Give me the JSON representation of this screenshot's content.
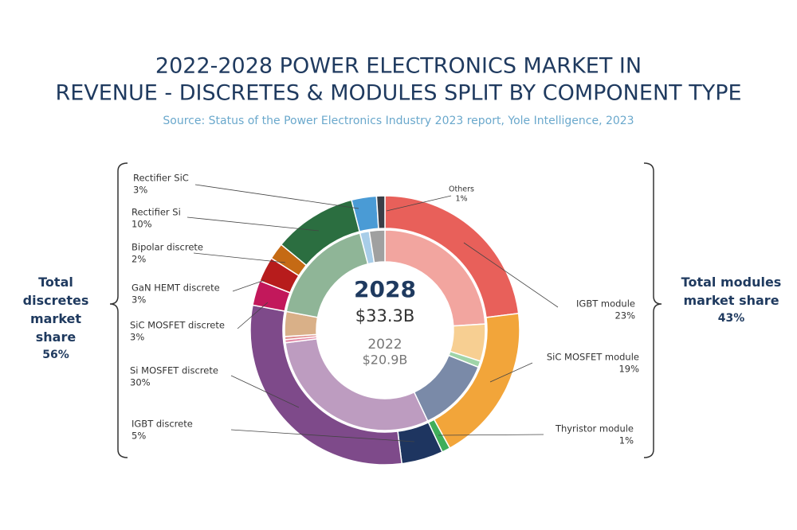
{
  "chart_data": {
    "type": "pie",
    "title": [
      "2022-2028 POWER ELECTRONICS MARKET IN",
      "REVENUE - DISCRETES & MODULES SPLIT BY COMPONENT TYPE"
    ],
    "subtitle": "Source: Status of the Power Electronics Industry 2023 report, Yole Intelligence, 2023",
    "categories": [
      "IGBT module",
      "SiC MOSFET module",
      "Thyristor module",
      "IGBT discrete",
      "Si MOSFET discrete",
      "SiC MOSFET discrete",
      "GaN HEMT discrete",
      "Bipolar discrete",
      "Rectifier Si",
      "Rectifier SiC",
      "Others"
    ],
    "series": [
      {
        "name": "2028",
        "total": "$33.3B",
        "colors": [
          "#e8605a",
          "#f2a53a",
          "#3fae5a",
          "#1e3560",
          "#7e4a8a",
          "#c2185b",
          "#b71c1c",
          "#c56a14",
          "#2b6e40",
          "#4a9bd5",
          "#3a3f47"
        ],
        "values": [
          23,
          19,
          1,
          5,
          30,
          3,
          3,
          2,
          10,
          3,
          1
        ],
        "value_labels": [
          "23%",
          "19%",
          "1%",
          "5%",
          "30%",
          "3%",
          "3%",
          "2%",
          "10%",
          "3%",
          "1%"
        ]
      },
      {
        "name": "2022",
        "total": "$20.9B",
        "colors": [
          "#f2a59f",
          "#f7cf92",
          "#9fd4a8",
          "#7a8aa8",
          "#bd9cc0",
          "#e38aa8",
          "#e09090",
          "#d9b088",
          "#8fb597",
          "#a8cde8",
          "#a0a0a0"
        ],
        "values": [
          24,
          6,
          1,
          12,
          30,
          0.5,
          0.5,
          4,
          18,
          1.5,
          2.5
        ]
      }
    ],
    "annotations": [
      {
        "text": "Total discretes market share",
        "value_label": "56%"
      },
      {
        "text": "Total modules market share",
        "value_label": "43%"
      }
    ]
  }
}
